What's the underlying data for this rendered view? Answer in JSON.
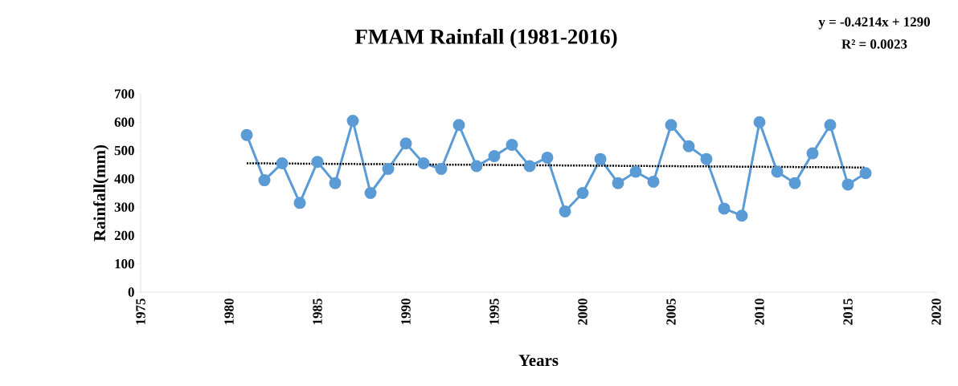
{
  "chart_data": {
    "type": "line",
    "title": "FMAM Rainfall (1981-2016)",
    "xlabel": "Years",
    "ylabel": "Rainfall(mm)",
    "annotations": [
      "y = -0.4214x + 1290",
      "R² = 0.0023"
    ],
    "x": [
      1981,
      1982,
      1983,
      1984,
      1985,
      1986,
      1987,
      1988,
      1989,
      1990,
      1991,
      1992,
      1993,
      1994,
      1995,
      1996,
      1997,
      1998,
      1999,
      2000,
      2001,
      2002,
      2003,
      2004,
      2005,
      2006,
      2007,
      2008,
      2009,
      2010,
      2011,
      2012,
      2013,
      2014,
      2015,
      2016
    ],
    "series": [
      {
        "color": "#5b9bd5",
        "marker": "circle",
        "line_style": "solid",
        "values": [
          555,
          395,
          455,
          315,
          460,
          385,
          605,
          350,
          435,
          525,
          455,
          435,
          590,
          445,
          480,
          520,
          445,
          475,
          285,
          350,
          470,
          385,
          425,
          390,
          590,
          515,
          470,
          295,
          270,
          600,
          425,
          385,
          490,
          590,
          380,
          420
        ]
      },
      {
        "type": "line",
        "color": "#000000",
        "marker": "none",
        "line_style": "dotted",
        "x": [
          1981,
          2016
        ],
        "values": [
          455,
          440
        ]
      }
    ],
    "xlim": [
      1975,
      2020
    ],
    "xticks": [
      1975,
      1980,
      1985,
      1990,
      1995,
      2000,
      2005,
      2010,
      2015,
      2020
    ],
    "ylim": [
      0,
      700
    ],
    "yticks": [
      0,
      100,
      200,
      300,
      400,
      500,
      600,
      700
    ],
    "grid": false
  }
}
